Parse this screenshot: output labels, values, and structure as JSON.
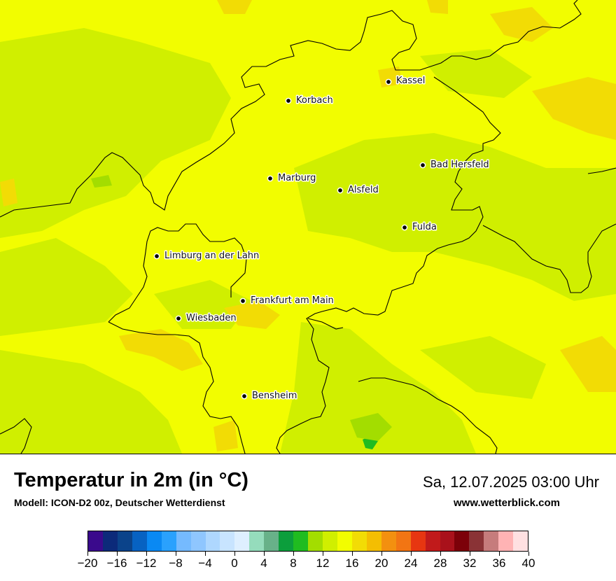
{
  "map": {
    "cities": [
      {
        "id": "kassel",
        "name": "Kassel"
      },
      {
        "id": "korbach",
        "name": "Korbach"
      },
      {
        "id": "bad-hersfeld",
        "name": "Bad Hersfeld"
      },
      {
        "id": "marburg",
        "name": "Marburg"
      },
      {
        "id": "alsfeld",
        "name": "Alsfeld"
      },
      {
        "id": "fulda",
        "name": "Fulda"
      },
      {
        "id": "limburg",
        "name": "Limburg an der Lahn"
      },
      {
        "id": "frankfurt",
        "name": "Frankfurt am Main"
      },
      {
        "id": "wiesbaden",
        "name": "Wiesbaden"
      },
      {
        "id": "bensheim",
        "name": "Bensheim"
      }
    ],
    "colors": {
      "base_yellow": "#f2fd00",
      "green": "#d0ef00",
      "warm": "#f2dc05",
      "deep_green": "#20bc20"
    }
  },
  "footer": {
    "title": "Temperatur in 2m (in °C)",
    "model": "Modell: ICON-D2 00z, Deutscher Wetterdienst",
    "datetime": "Sa, 12.07.2025 03:00 Uhr",
    "source_url": "www.wetterblick.com"
  },
  "legend": {
    "colors": [
      "#3a0a8c",
      "#0c2a7a",
      "#0b438a",
      "#0762c2",
      "#0a89f3",
      "#2aa1fd",
      "#75bafe",
      "#8fc6fe",
      "#aed7fe",
      "#c8e4ff",
      "#deefff",
      "#95dcbc",
      "#68b189",
      "#0c9e3c",
      "#20bc20",
      "#a3dd00",
      "#d0ef00",
      "#f2fd00",
      "#f2dc05",
      "#f4be02",
      "#f3900f",
      "#f27513",
      "#e73611",
      "#c11a1b",
      "#a9111b",
      "#7c0109",
      "#8a3336",
      "#c67c7c",
      "#ffb3b4",
      "#ffe0e1"
    ],
    "tick_labels": [
      "−20",
      "−16",
      "−12",
      "−8",
      "−4",
      "0",
      "4",
      "8",
      "12",
      "16",
      "20",
      "24",
      "28",
      "32",
      "36",
      "40"
    ]
  }
}
